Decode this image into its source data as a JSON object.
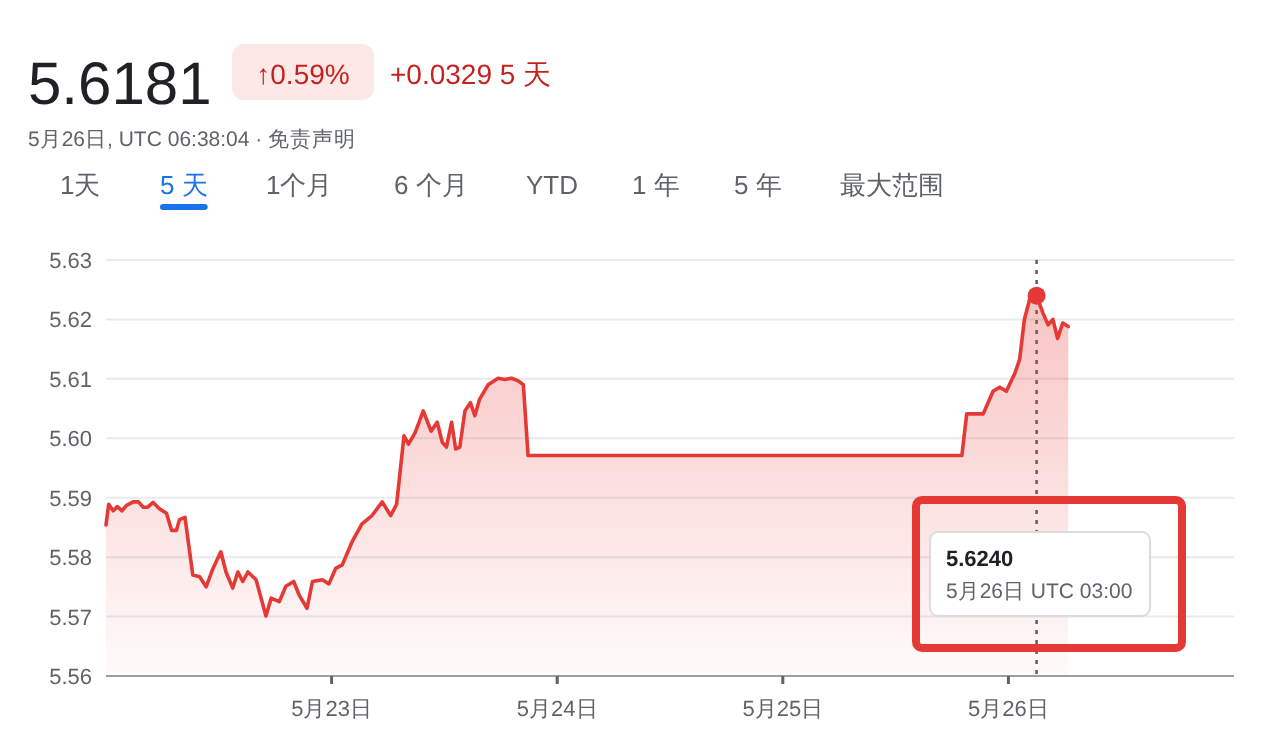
{
  "chart_data": {
    "type": "area",
    "title": "5.6181",
    "subtitle": "5月26日, UTC 06:38:04 · 免责声明",
    "annotations": [
      "↑0.59%",
      "+0.0329 5 天",
      "1天",
      "5 天",
      "1个月",
      "6 个月",
      "YTD",
      "1 年",
      "5 年",
      "最大范围",
      "5.6240\n5月26日 UTC 03:00"
    ],
    "xlim": [
      "--05-22",
      "--05-27"
    ],
    "xticks": [
      {
        "value": "--05-23",
        "label": "5月23日"
      },
      {
        "value": "--05-24",
        "label": "5月24日"
      },
      {
        "value": "--05-25",
        "label": "5月25日"
      },
      {
        "value": "--05-26",
        "label": "5月26日"
      }
    ],
    "ylim": [
      5.56,
      5.63
    ],
    "yticks": [
      5.56,
      5.57,
      5.58,
      5.59,
      {
        "value": 5.6,
        "label": "5.60"
      },
      5.61,
      5.62,
      5.63
    ],
    "grid": "y",
    "ref_lines": [
      {
        "axis": "x",
        "value": "--05-26T03:00",
        "line_style": "dotted",
        "color": "#5f6368"
      }
    ],
    "series": [
      {
        "color": "#e53935",
        "x": [
          "--05-22T00:00",
          "--05-22T00:17",
          "--05-22T00:46",
          "--05-22T01:12",
          "--05-22T01:42",
          "--05-22T02:11",
          "--05-22T02:54",
          "--05-22T03:27",
          "--05-22T03:58",
          "--05-22T04:26",
          "--05-22T05:01",
          "--05-22T05:43",
          "--05-22T06:26",
          "--05-22T06:59",
          "--05-22T07:29",
          "--05-22T07:49",
          "--05-22T08:24",
          "--05-22T09:14",
          "--05-22T09:58",
          "--05-22T10:39",
          "--05-22T11:23",
          "--05-22T12:13",
          "--05-22T12:46",
          "--05-22T13:29",
          "--05-22T14:02",
          "--05-22T14:33",
          "--05-22T15:06",
          "--05-22T15:58",
          "--05-22T17:01",
          "--05-22T17:34",
          "--05-22T18:26",
          "--05-22T19:08",
          "--05-22T19:58",
          "--05-22T20:33",
          "--05-22T21:23",
          "--05-22T21:58",
          "--05-22T23:01",
          "--05-22T23:43",
          "--05-23T00:26",
          "--05-23T01:08",
          "--05-23T02:11",
          "--05-23T03:14",
          "--05-23T04:18",
          "--05-23T05:23",
          "--05-23T06:17",
          "--05-23T06:55",
          "--05-23T07:42",
          "--05-23T08:11",
          "--05-23T08:54",
          "--05-23T09:45",
          "--05-23T10:35",
          "--05-23T11:14",
          "--05-23T11:47",
          "--05-23T12:13",
          "--05-23T12:46",
          "--05-23T13:12",
          "--05-23T13:38",
          "--05-23T14:11",
          "--05-23T14:46",
          "--05-23T15:14",
          "--05-23T15:45",
          "--05-23T16:39",
          "--05-23T17:43",
          "--05-23T18:26",
          "--05-23T19:08",
          "--05-23T19:49",
          "--05-23T20:24",
          "--05-23T20:54",
          "--05-25T19:03",
          "--05-25T19:34",
          "--05-25T21:19",
          "--05-25T22:22",
          "--05-25T23:05",
          "--05-25T23:47",
          "--05-26T00:42",
          "--05-26T01:12",
          "--05-26T01:42",
          "--05-26T02:15",
          "--05-26T03:00",
          "--05-26T03:40",
          "--05-26T04:13",
          "--05-26T04:44",
          "--05-26T05:14",
          "--05-26T05:47",
          "--05-26T06:22"
        ],
        "values": [
          5.5854,
          5.5889,
          5.5878,
          5.5885,
          5.5878,
          5.5887,
          5.5893,
          5.5893,
          5.5884,
          5.5884,
          5.5892,
          5.5881,
          5.5874,
          5.5845,
          5.5845,
          5.5863,
          5.5867,
          5.577,
          5.5767,
          5.575,
          5.5781,
          5.5809,
          5.5775,
          5.5748,
          5.5775,
          5.5759,
          5.5775,
          5.5762,
          5.5701,
          5.5731,
          5.5725,
          5.5751,
          5.5759,
          5.5736,
          5.5714,
          5.5759,
          5.5762,
          5.5755,
          5.5781,
          5.5787,
          5.5826,
          5.5856,
          5.587,
          5.5893,
          5.587,
          5.5889,
          5.6004,
          5.599,
          5.601,
          5.6046,
          5.6012,
          5.6027,
          5.5993,
          5.5985,
          5.6027,
          5.5982,
          5.5985,
          5.6046,
          5.606,
          5.6038,
          5.6066,
          5.609,
          5.6101,
          5.6099,
          5.6101,
          5.6097,
          5.609,
          5.5971,
          5.5971,
          5.6041,
          5.6041,
          5.6079,
          5.6086,
          5.6079,
          5.611,
          5.6133,
          5.62,
          5.6233,
          5.624,
          5.6211,
          5.6191,
          5.62,
          5.6168,
          5.6194,
          5.6188
        ]
      },
      {
        "type": "scatter",
        "color": "#e53935",
        "x": [
          "--05-26T03:00"
        ],
        "values": [
          5.624
        ]
      }
    ]
  }
}
